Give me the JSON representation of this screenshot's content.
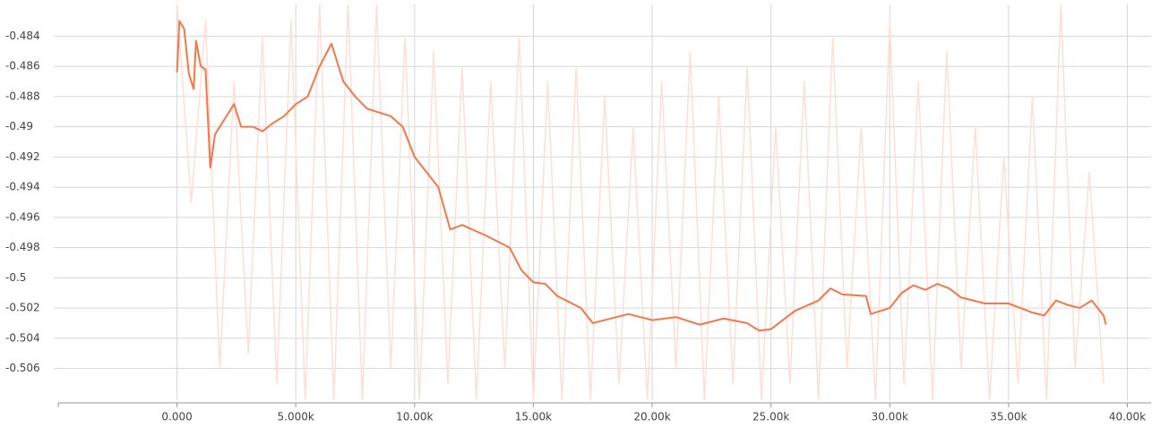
{
  "chart_data": {
    "type": "line",
    "xlim": [
      -5000,
      41000
    ],
    "xticks": [
      {
        "value": 0,
        "label": "0.000"
      },
      {
        "value": 5000,
        "label": "5.000k"
      },
      {
        "value": 10000,
        "label": "10.00k"
      },
      {
        "value": 15000,
        "label": "15.00k"
      },
      {
        "value": 20000,
        "label": "20.00k"
      },
      {
        "value": 25000,
        "label": "25.00k"
      },
      {
        "value": 30000,
        "label": "30.00k"
      },
      {
        "value": 35000,
        "label": "35.00k"
      },
      {
        "value": 40000,
        "label": "40.00k"
      }
    ],
    "ylim": [
      -0.5081,
      -0.4819
    ],
    "yticks": [
      -0.506,
      -0.504,
      -0.502,
      -0.5,
      -0.498,
      -0.496,
      -0.494,
      -0.492,
      -0.49,
      -0.488,
      -0.486,
      -0.484
    ],
    "grid": true,
    "series": [
      {
        "color": "#fddfd5",
        "x": [
          0,
          600,
          1200,
          1800,
          2400,
          3000,
          3600,
          4200,
          4800,
          5400,
          6000,
          6600,
          7200,
          7800,
          8400,
          9000,
          9600,
          10200,
          10800,
          11400,
          12000,
          12600,
          13200,
          13800,
          14400,
          15000,
          15600,
          16200,
          16800,
          17400,
          18000,
          18600,
          19200,
          19800,
          20400,
          21000,
          21600,
          22200,
          22800,
          23400,
          24000,
          24600,
          25200,
          25800,
          26400,
          27000,
          27600,
          28200,
          28800,
          29400,
          30000,
          30600,
          31200,
          31800,
          32400,
          33000,
          33600,
          34200,
          34800,
          35400,
          36000,
          36600,
          37200,
          37800,
          38400,
          39000
        ],
        "values": [
          -0.4819,
          -0.495,
          -0.483,
          -0.506,
          -0.487,
          -0.505,
          -0.484,
          -0.507,
          -0.483,
          -0.5081,
          -0.4819,
          -0.5081,
          -0.4819,
          -0.5081,
          -0.4819,
          -0.506,
          -0.484,
          -0.5081,
          -0.485,
          -0.507,
          -0.486,
          -0.5081,
          -0.487,
          -0.506,
          -0.484,
          -0.5081,
          -0.487,
          -0.5081,
          -0.486,
          -0.5081,
          -0.488,
          -0.507,
          -0.49,
          -0.5081,
          -0.487,
          -0.506,
          -0.485,
          -0.5081,
          -0.488,
          -0.507,
          -0.486,
          -0.5081,
          -0.49,
          -0.507,
          -0.487,
          -0.5081,
          -0.484,
          -0.506,
          -0.49,
          -0.5081,
          -0.483,
          -0.507,
          -0.487,
          -0.5081,
          -0.485,
          -0.506,
          -0.49,
          -0.5081,
          -0.492,
          -0.507,
          -0.488,
          -0.5081,
          -0.4819,
          -0.506,
          -0.493,
          -0.507
        ]
      },
      {
        "color": "#f4774a",
        "x": [
          0,
          100,
          300,
          500,
          700,
          800,
          1000,
          1200,
          1400,
          1600,
          2000,
          2400,
          2700,
          3200,
          3600,
          4000,
          4500,
          5000,
          5500,
          6000,
          6500,
          7000,
          7500,
          8000,
          9000,
          9500,
          10000,
          11000,
          11500,
          12000,
          13000,
          14000,
          14500,
          15000,
          15500,
          16000,
          17000,
          17500,
          18000,
          19000,
          20000,
          21000,
          22000,
          23000,
          24000,
          24500,
          25000,
          26000,
          27000,
          27500,
          28000,
          29000,
          29200,
          30000,
          30500,
          31000,
          31500,
          32000,
          32500,
          33000,
          34000,
          35000,
          36000,
          36500,
          37000,
          37500,
          38000,
          38500,
          39000,
          39100
        ],
        "values": [
          -0.4864,
          -0.483,
          -0.4835,
          -0.4865,
          -0.4875,
          -0.4843,
          -0.486,
          -0.4862,
          -0.4927,
          -0.4905,
          -0.4895,
          -0.4885,
          -0.49,
          -0.49,
          -0.4903,
          -0.4898,
          -0.4893,
          -0.4885,
          -0.488,
          -0.486,
          -0.4845,
          -0.487,
          -0.488,
          -0.4888,
          -0.4893,
          -0.49,
          -0.492,
          -0.494,
          -0.4968,
          -0.4965,
          -0.4972,
          -0.498,
          -0.4995,
          -0.5003,
          -0.5004,
          -0.5012,
          -0.502,
          -0.503,
          -0.5028,
          -0.5024,
          -0.5028,
          -0.5026,
          -0.5031,
          -0.5027,
          -0.503,
          -0.5035,
          -0.5034,
          -0.5022,
          -0.5015,
          -0.5007,
          -0.5011,
          -0.5012,
          -0.5024,
          -0.502,
          -0.501,
          -0.5005,
          -0.5008,
          -0.5004,
          -0.5007,
          -0.5013,
          -0.5017,
          -0.5017,
          -0.5023,
          -0.5025,
          -0.5015,
          -0.5018,
          -0.502,
          -0.5015,
          -0.5025,
          -0.5031
        ]
      }
    ]
  }
}
